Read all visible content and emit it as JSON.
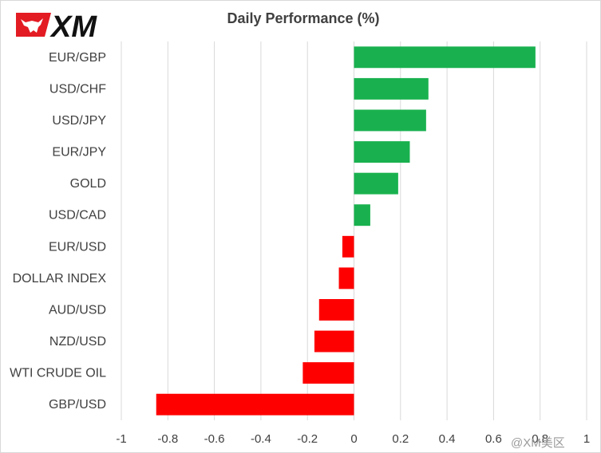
{
  "logo": {
    "text": "XM",
    "icon": "bull-icon"
  },
  "watermark": "@XM美区",
  "chart_data": {
    "type": "bar",
    "orientation": "horizontal",
    "title": "Daily Performance (%)",
    "categories": [
      "EUR/GBP",
      "USD/CHF",
      "USD/JPY",
      "EUR/JPY",
      "GOLD",
      "USD/CAD",
      "EUR/USD",
      "DOLLAR INDEX",
      "AUD/USD",
      "NZD/USD",
      "WTI CRUDE OIL",
      "GBP/USD"
    ],
    "values": [
      0.78,
      0.32,
      0.31,
      0.24,
      0.19,
      0.07,
      -0.05,
      -0.065,
      -0.15,
      -0.17,
      -0.22,
      -0.85
    ],
    "xlim": [
      -1,
      1
    ],
    "xticks": [
      "-1",
      "-0.8",
      "-0.6",
      "-0.4",
      "-0.2",
      "0",
      "0.2",
      "0.4",
      "0.6",
      "0.8",
      "1"
    ],
    "grid": "vertical",
    "colors": {
      "positive": "#19b14f",
      "negative": "#fe0000",
      "grid": "#d9d9d9"
    }
  }
}
